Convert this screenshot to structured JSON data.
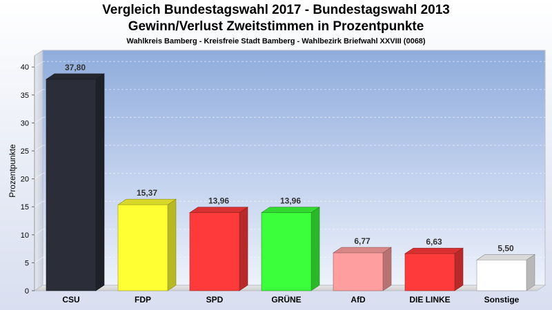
{
  "header": {
    "title_line1": "Vergleich Bundestagswahl 2017 - Bundestagswahl 2013",
    "title_line2": "Gewinn/Verlust Zweitstimmen in Prozentpunkte",
    "subtitle": "Wahlkreis Bamberg - Kreisfreie Stadt Bamberg - Wahlbezirk Briefwahl XXVIII (0068)"
  },
  "chart_data": {
    "type": "bar",
    "title": "Vergleich Bundestagswahl 2017 - Bundestagswahl 2013",
    "subtitle": "Gewinn/Verlust Zweitstimmen in Prozentpunkte",
    "xlabel": "",
    "ylabel": "Prozentpunkte",
    "ylim": [
      0,
      42
    ],
    "yticks": [
      0,
      5,
      10,
      15,
      20,
      25,
      30,
      35,
      40
    ],
    "grid": true,
    "categories": [
      "CSU",
      "FDP",
      "SPD",
      "GRÜNE",
      "AfD",
      "DIE LINKE",
      "Sonstige"
    ],
    "values": [
      37.8,
      15.37,
      13.96,
      13.96,
      6.77,
      6.63,
      5.5
    ],
    "value_labels": [
      "37,80",
      "15,37",
      "13,96",
      "13,96",
      "6,77",
      "6,63",
      "5,50"
    ],
    "colors": [
      "#2b2e38",
      "#ffff33",
      "#ff3a3a",
      "#3aff3a",
      "#ff9e9e",
      "#ff3a3a",
      "#ffffff"
    ]
  }
}
